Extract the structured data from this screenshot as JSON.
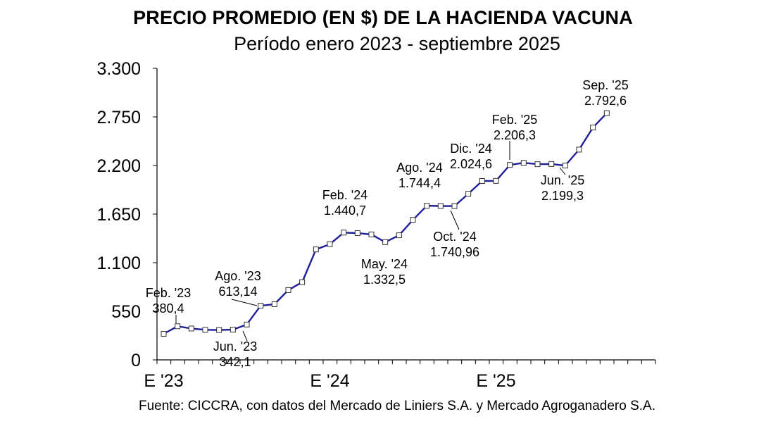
{
  "chart_data": {
    "type": "line",
    "title": "PRECIO PROMEDIO (EN $) DE LA HACIENDA VACUNA",
    "subtitle": "Período enero 2023 - septiembre 2025",
    "source": "Fuente: CICCRA, con datos del Mercado de Liniers S.A. y Mercado Agroganadero S.A.",
    "xlabel": "",
    "ylabel": "",
    "ylim": [
      0,
      3300
    ],
    "y_ticks": [
      0,
      550,
      1100,
      1650,
      2200,
      2750,
      3300
    ],
    "y_tick_labels": [
      "0",
      "550",
      "1.100",
      "1.650",
      "2.200",
      "2.750",
      "3.300"
    ],
    "x_tick_labels": [
      {
        "index": 0,
        "label": "E '23"
      },
      {
        "index": 12,
        "label": "E '24"
      },
      {
        "index": 24,
        "label": "E '25"
      }
    ],
    "months_total": 36,
    "series": [
      {
        "name": "Precio promedio",
        "color": "#1f1f9a",
        "x": [
          0,
          1,
          2,
          3,
          4,
          5,
          6,
          7,
          8,
          9,
          10,
          11,
          12,
          13,
          14,
          15,
          16,
          17,
          18,
          19,
          20,
          21,
          22,
          23,
          24,
          25,
          26,
          27,
          28,
          29,
          30,
          31,
          32
        ],
        "values": [
          295,
          380.4,
          355,
          340,
          338,
          342.1,
          400,
          613.14,
          630,
          790,
          880,
          1250,
          1310,
          1440.7,
          1435,
          1420,
          1332.5,
          1410,
          1585,
          1744.4,
          1742,
          1740.96,
          1880,
          2024.6,
          2026,
          2206.3,
          2230,
          2215,
          2217,
          2199.3,
          2380,
          2630,
          2792.6
        ]
      }
    ],
    "annotations": [
      {
        "index": 1,
        "lines": [
          "Feb. '23",
          "380,4"
        ]
      },
      {
        "index": 5,
        "lines": [
          "Jun. '23",
          "342,1"
        ]
      },
      {
        "index": 7,
        "lines": [
          "Ago. '23",
          "613,14"
        ]
      },
      {
        "index": 13,
        "lines": [
          "Feb. '24",
          "1.440,7"
        ]
      },
      {
        "index": 16,
        "lines": [
          "May. '24",
          "1.332,5"
        ]
      },
      {
        "index": 19,
        "lines": [
          "Ago. '24",
          "1.744,4"
        ]
      },
      {
        "index": 21,
        "lines": [
          "Oct. '24",
          "1.740,96"
        ]
      },
      {
        "index": 23,
        "lines": [
          "Dic. '24",
          "2.024,6"
        ]
      },
      {
        "index": 25,
        "lines": [
          "Feb. '25",
          "2.206,3"
        ]
      },
      {
        "index": 29,
        "lines": [
          "Jun. '25",
          "2.199,3"
        ]
      },
      {
        "index": 32,
        "lines": [
          "Sep. '25",
          "2.792,6"
        ]
      }
    ]
  }
}
